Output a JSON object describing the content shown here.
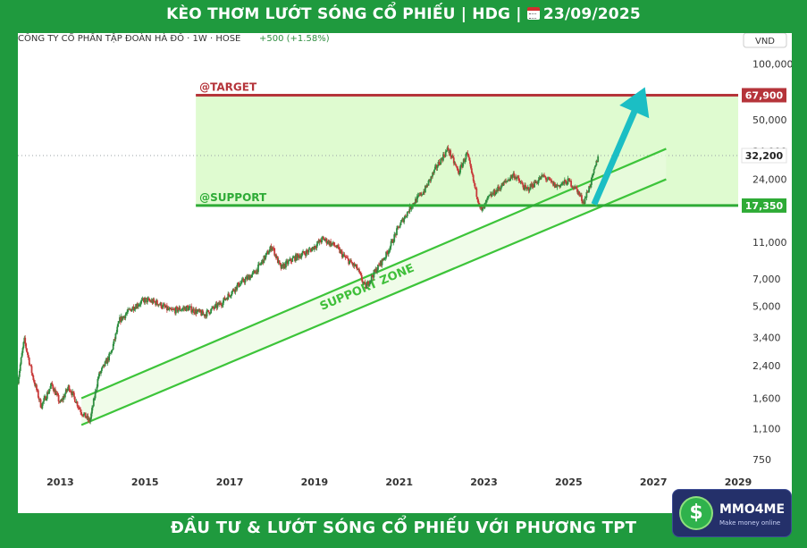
{
  "header": {
    "title": "KÈO THƠM LƯỚT SÓNG CỔ PHIẾU | HDG |",
    "date": "23/09/2025"
  },
  "footer": {
    "slogan": "ĐẦU TƯ & LƯỚT SÓNG CỔ PHIẾU VỚI PHƯƠNG TPT"
  },
  "logo": {
    "name": "MMO4ME",
    "tagline": "Make money online",
    "symbol": "$"
  },
  "colors": {
    "background": "#1f9a3e",
    "target_line": "#b5343a",
    "support_line": "#2eab36",
    "zone_fill": "#dffbd0",
    "channel_line": "#3dc43a",
    "arrow": "#1bbec4",
    "candle_up": "#2f8e41",
    "candle_down": "#c83a3a"
  },
  "chart_data": {
    "type": "candlestick",
    "symbol_info": "CÔNG TY CỔ PHẦN TẬP ĐOÀN HÀ ĐÔ · 1W · HOSE",
    "change": "+500 (+1.58%)",
    "currency": "VND",
    "log_scale": true,
    "x_range": [
      2012.0,
      2029.0
    ],
    "y_range": [
      650,
      120000
    ],
    "x_ticks": [
      "2013",
      "2015",
      "2017",
      "2019",
      "2021",
      "2023",
      "2025",
      "2027",
      "2029"
    ],
    "y_ticks": [
      "100,000",
      "50,000",
      "34,000",
      "24,000",
      "11,000",
      "7,000",
      "5,000",
      "3,400",
      "2,400",
      "1,600",
      "1,100",
      "750"
    ],
    "last_price": {
      "value": 32200,
      "label": "32,200"
    },
    "target": {
      "value": 67900,
      "label": "67,900",
      "name": "@TARGET"
    },
    "support": {
      "value": 17350,
      "label": "17,350",
      "name": "@SUPPORT"
    },
    "zone_start": 2016.2,
    "zone_end": 2028.0,
    "channel_label": "SUPPORT ZONE",
    "channel_upper": [
      [
        2013.5,
        1600
      ],
      [
        2027.3,
        35000
      ]
    ],
    "channel_lower": [
      [
        2013.5,
        1150
      ],
      [
        2027.3,
        24000
      ]
    ],
    "arrow": {
      "from": [
        2025.6,
        17600
      ],
      "to": [
        2026.8,
        75000
      ]
    },
    "price_path": [
      [
        2012.0,
        2000
      ],
      [
        2012.15,
        3300
      ],
      [
        2012.35,
        2100
      ],
      [
        2012.55,
        1450
      ],
      [
        2012.8,
        1900
      ],
      [
        2013.0,
        1500
      ],
      [
        2013.2,
        1850
      ],
      [
        2013.5,
        1350
      ],
      [
        2013.7,
        1200
      ],
      [
        2013.9,
        2100
      ],
      [
        2014.2,
        2800
      ],
      [
        2014.4,
        4200
      ],
      [
        2014.7,
        4900
      ],
      [
        2015.0,
        5400
      ],
      [
        2015.3,
        5200
      ],
      [
        2015.6,
        4700
      ],
      [
        2016.0,
        4900
      ],
      [
        2016.4,
        4500
      ],
      [
        2016.8,
        5200
      ],
      [
        2017.2,
        6500
      ],
      [
        2017.6,
        7600
      ],
      [
        2018.0,
        10500
      ],
      [
        2018.2,
        8000
      ],
      [
        2018.5,
        9000
      ],
      [
        2018.9,
        10000
      ],
      [
        2019.2,
        11500
      ],
      [
        2019.5,
        10500
      ],
      [
        2019.7,
        9200
      ],
      [
        2020.0,
        8000
      ],
      [
        2020.2,
        6300
      ],
      [
        2020.4,
        7500
      ],
      [
        2020.7,
        9500
      ],
      [
        2021.0,
        13500
      ],
      [
        2021.3,
        17500
      ],
      [
        2021.6,
        21000
      ],
      [
        2021.9,
        28500
      ],
      [
        2022.15,
        35000
      ],
      [
        2022.4,
        26000
      ],
      [
        2022.6,
        33000
      ],
      [
        2022.8,
        21000
      ],
      [
        2022.95,
        16000
      ],
      [
        2023.1,
        19000
      ],
      [
        2023.4,
        22000
      ],
      [
        2023.7,
        25500
      ],
      [
        2024.0,
        21000
      ],
      [
        2024.4,
        25000
      ],
      [
        2024.7,
        22000
      ],
      [
        2025.0,
        23500
      ],
      [
        2025.2,
        21000
      ],
      [
        2025.35,
        18000
      ],
      [
        2025.55,
        24000
      ],
      [
        2025.7,
        32200
      ]
    ]
  }
}
